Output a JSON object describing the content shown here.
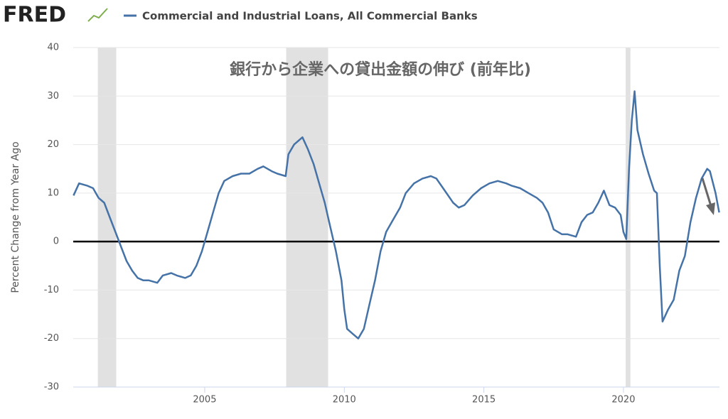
{
  "chart_data": {
    "type": "line",
    "logo": "FRED",
    "annotation": "銀行から企業への貸出金額の伸び (前年比)",
    "y_label": "Percent Change from Year Ago",
    "xlim": [
      2000.29,
      2023.44
    ],
    "xticks": [
      2005,
      2010,
      2015,
      2020
    ],
    "ylim": [
      -30,
      40
    ],
    "yticks": [
      -30,
      -20,
      -10,
      0,
      10,
      20,
      30,
      40
    ],
    "grid": true,
    "recessions": [
      [
        2001.17,
        2001.83
      ],
      [
        2007.92,
        2009.42
      ],
      [
        2020.08,
        2020.25
      ]
    ],
    "recession_color": "#e1e1e1",
    "x": [
      2000.3,
      2000.5,
      2000.8,
      2001.0,
      2001.2,
      2001.4,
      2001.6,
      2001.8,
      2002.0,
      2002.2,
      2002.4,
      2002.6,
      2002.8,
      2003.0,
      2003.3,
      2003.5,
      2003.8,
      2004.0,
      2004.3,
      2004.5,
      2004.7,
      2004.9,
      2005.1,
      2005.3,
      2005.5,
      2005.7,
      2006.0,
      2006.3,
      2006.6,
      2006.9,
      2007.1,
      2007.4,
      2007.6,
      2007.9,
      2008.0,
      2008.2,
      2008.5,
      2008.7,
      2008.9,
      2009.0,
      2009.1,
      2009.3,
      2009.5,
      2009.7,
      2009.9,
      2010.0,
      2010.1,
      2010.3,
      2010.5,
      2010.7,
      2010.9,
      2011.1,
      2011.3,
      2011.5,
      2011.7,
      2012.0,
      2012.2,
      2012.5,
      2012.8,
      2013.1,
      2013.3,
      2013.6,
      2013.9,
      2014.1,
      2014.3,
      2014.6,
      2014.9,
      2015.2,
      2015.5,
      2015.8,
      2016.0,
      2016.3,
      2016.6,
      2016.9,
      2017.1,
      2017.3,
      2017.5,
      2017.8,
      2018.0,
      2018.3,
      2018.5,
      2018.7,
      2018.9,
      2019.1,
      2019.3,
      2019.5,
      2019.7,
      2019.9,
      2020.0,
      2020.1,
      2020.2,
      2020.3,
      2020.4,
      2020.5,
      2020.7,
      2020.9,
      2021.1,
      2021.2,
      2021.3,
      2021.4,
      2021.6,
      2021.8,
      2022.0,
      2022.2,
      2022.4,
      2022.6,
      2022.8,
      2023.0,
      2023.1,
      2023.3,
      2023.43
    ],
    "series": [
      {
        "name": "Commercial and Industrial Loans, All Commercial Banks",
        "color": "#4572a7",
        "values": [
          9.5,
          12,
          11.5,
          11,
          9,
          8,
          5,
          2,
          -1,
          -4,
          -6,
          -7.5,
          -8,
          -8,
          -8.5,
          -7,
          -6.5,
          -7,
          -7.5,
          -7,
          -5,
          -2,
          2,
          6,
          10,
          12.5,
          13.5,
          14,
          14,
          15,
          15.5,
          14.5,
          14,
          13.5,
          18,
          20,
          21.5,
          19,
          16,
          14,
          12,
          8,
          3,
          -2,
          -8,
          -14,
          -18,
          -19,
          -20,
          -18,
          -13,
          -8,
          -2,
          2,
          4,
          7,
          10,
          12,
          13,
          13.5,
          13,
          10.5,
          8,
          7,
          7.5,
          9.5,
          11,
          12,
          12.5,
          12,
          11.5,
          11,
          10,
          9,
          8,
          6,
          2.5,
          1.5,
          1.5,
          1,
          4,
          5.5,
          6,
          8,
          10.5,
          7.5,
          7,
          5.5,
          2,
          0.5,
          15,
          25,
          31,
          23,
          18,
          14,
          10.5,
          10,
          -5,
          -16.5,
          -14,
          -12,
          -6,
          -3,
          4,
          9,
          13,
          15,
          14.5,
          10,
          6
        ]
      }
    ]
  }
}
